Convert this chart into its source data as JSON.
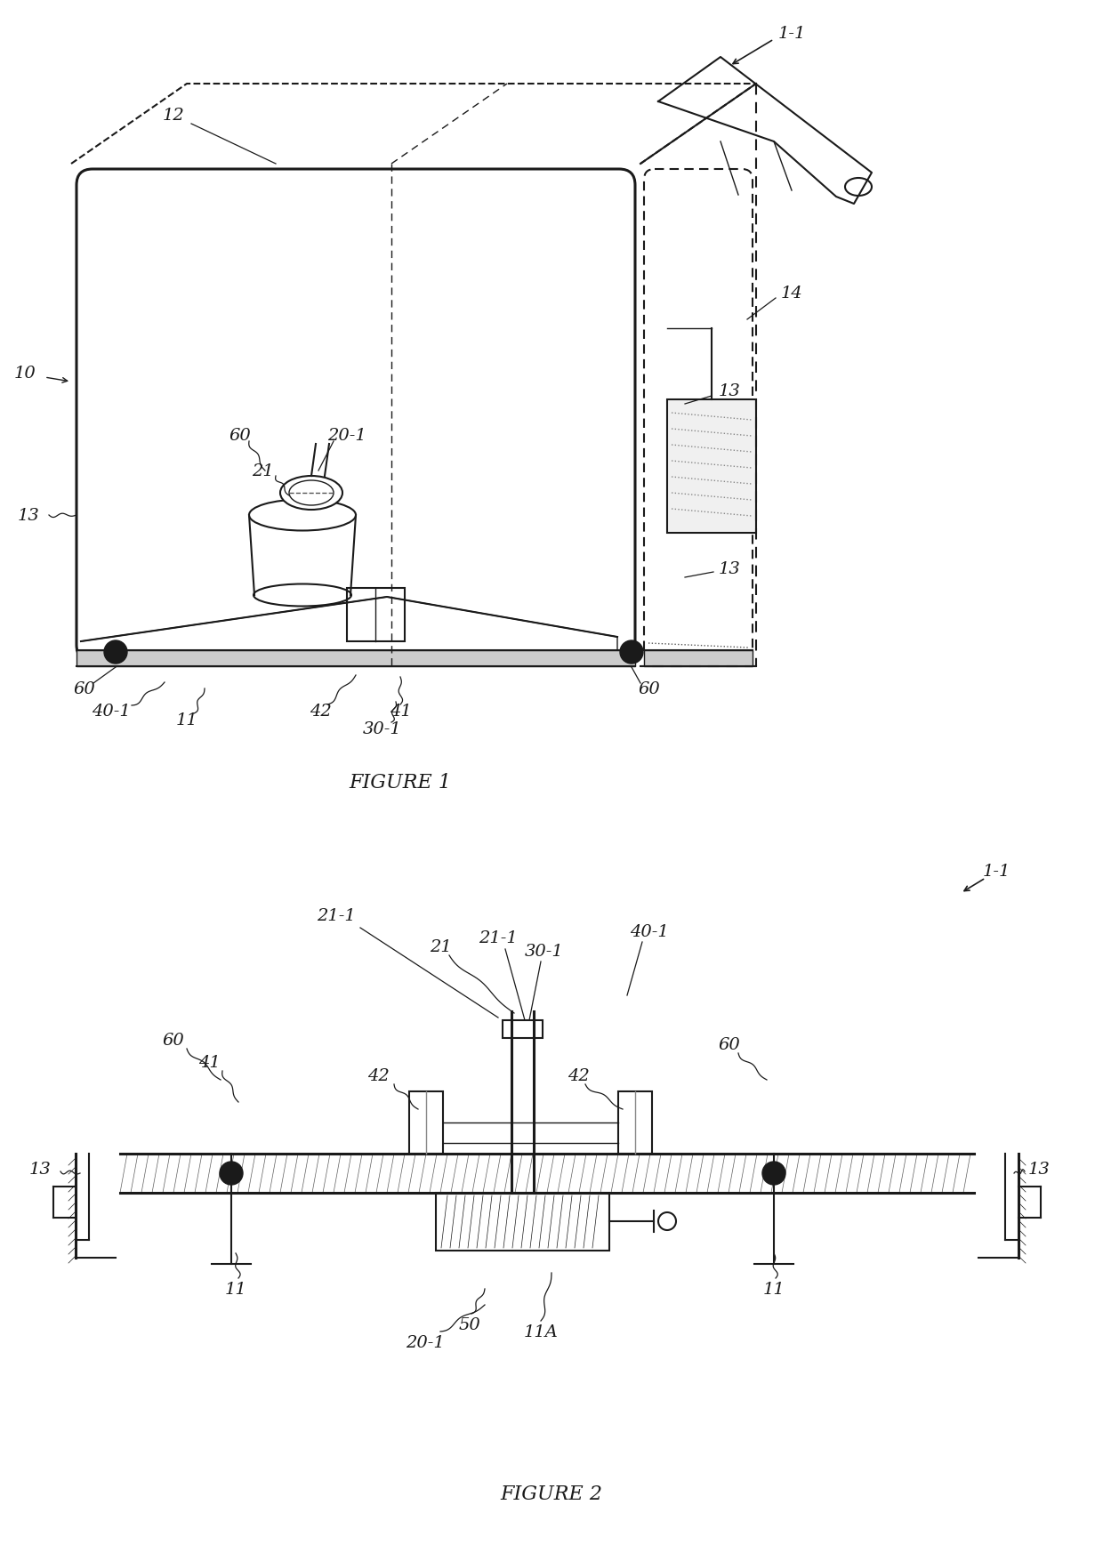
{
  "bg": "#ffffff",
  "lc": "#1a1a1a",
  "fig_w": 12.4,
  "fig_h": 17.56,
  "cap1": "FIGURE 1",
  "cap2": "FIGURE 2"
}
